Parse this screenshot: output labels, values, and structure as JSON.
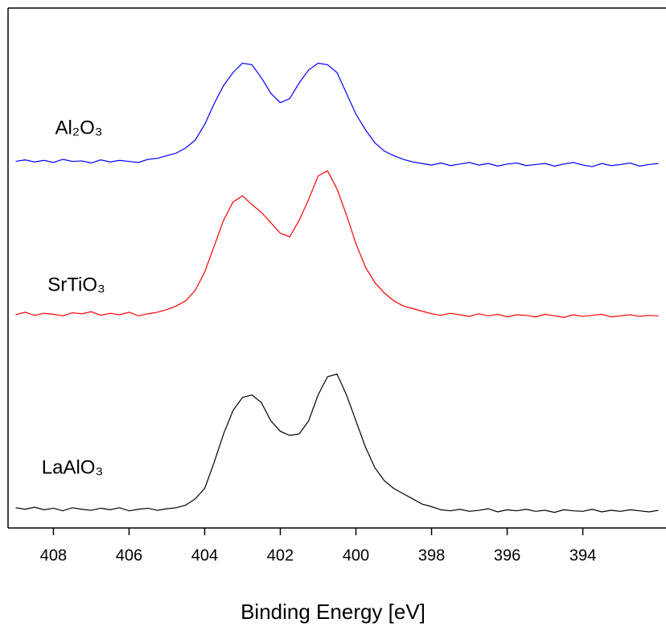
{
  "chart_data": {
    "type": "line",
    "x_label": "Binding Energy [eV]",
    "x": [
      409,
      408.75,
      408.5,
      408.25,
      408,
      407.75,
      407.5,
      407.25,
      407,
      406.75,
      406.5,
      406.25,
      406,
      405.75,
      405.5,
      405.25,
      405,
      404.75,
      404.5,
      404.25,
      404,
      403.75,
      403.5,
      403.25,
      403,
      402.75,
      402.5,
      402.25,
      402,
      401.75,
      401.5,
      401.25,
      401,
      400.75,
      400.5,
      400.25,
      400,
      399.75,
      399.5,
      399.25,
      399,
      398.75,
      398.5,
      398.25,
      398,
      397.75,
      397.5,
      397.25,
      397,
      396.75,
      396.5,
      396.25,
      396,
      395.75,
      395.5,
      395.25,
      395,
      394.75,
      394.5,
      394.25,
      394,
      393.75,
      393.5,
      393.25,
      393,
      392.75,
      392.5,
      392.25,
      392
    ],
    "series": [
      {
        "name": "Al₂O₃",
        "color": "#0000ff",
        "values": [
          70.5,
          70.8,
          70.4,
          70.7,
          70.3,
          70.9,
          70.5,
          70.6,
          70.2,
          70.8,
          70.4,
          70.7,
          70.5,
          70.3,
          70.9,
          71.1,
          71.6,
          72.1,
          73.1,
          74.6,
          77.6,
          81.6,
          85.1,
          87.6,
          89.4,
          89.1,
          86.6,
          83.6,
          81.8,
          82.6,
          85.6,
          88.1,
          89.4,
          89.1,
          87.6,
          83.6,
          79.6,
          76.6,
          74.1,
          72.5,
          71.6,
          70.9,
          70.4,
          70.1,
          69.8,
          70.2,
          69.7,
          70.0,
          70.3,
          69.8,
          70.1,
          69.6,
          70.0,
          70.2,
          69.7,
          69.9,
          70.1,
          69.6,
          70.0,
          70.3,
          69.8,
          69.5,
          70.1,
          69.7,
          69.9,
          70.2,
          69.6,
          69.9,
          70.1
        ]
      },
      {
        "name": "SrTiO₃",
        "color": "#ff0000",
        "values": [
          41.0,
          41.5,
          40.9,
          41.3,
          41.1,
          40.8,
          41.4,
          41.2,
          41.6,
          40.9,
          41.3,
          41.0,
          41.5,
          40.8,
          41.2,
          41.5,
          42.0,
          42.7,
          43.7,
          45.7,
          49.2,
          54.2,
          59.2,
          62.7,
          63.9,
          62.2,
          60.7,
          58.7,
          56.7,
          56.0,
          59.2,
          63.2,
          67.7,
          68.7,
          65.2,
          60.2,
          54.7,
          50.2,
          47.2,
          45.2,
          43.7,
          42.7,
          42.2,
          41.7,
          41.2,
          40.9,
          41.3,
          41.0,
          40.7,
          41.2,
          40.8,
          41.1,
          40.6,
          41.0,
          40.9,
          40.6,
          41.1,
          40.8,
          40.5,
          41.0,
          40.7,
          40.9,
          41.1,
          40.6,
          40.8,
          41.0,
          40.7,
          40.9,
          40.8
        ]
      },
      {
        "name": "LaAlO₃",
        "color": "#000000",
        "values": [
          3.9,
          3.6,
          4.0,
          3.5,
          3.8,
          3.3,
          3.9,
          3.6,
          3.4,
          3.8,
          3.5,
          3.9,
          3.3,
          3.6,
          3.8,
          3.4,
          3.7,
          3.9,
          4.4,
          5.6,
          7.6,
          12.6,
          18.1,
          22.6,
          25.1,
          25.6,
          24.1,
          20.6,
          18.6,
          17.8,
          18.1,
          20.6,
          25.6,
          29.1,
          29.6,
          25.6,
          20.6,
          15.6,
          11.6,
          9.1,
          7.6,
          6.6,
          5.6,
          4.6,
          4.1,
          3.5,
          3.3,
          3.6,
          3.2,
          3.4,
          3.7,
          3.1,
          3.5,
          3.3,
          3.6,
          3.2,
          3.4,
          3.0,
          3.5,
          3.3,
          3.2,
          3.6,
          3.1,
          3.4,
          3.2,
          3.5,
          3.3,
          3.1,
          3.4
        ]
      }
    ],
    "xlim": [
      409.2,
      391.8
    ],
    "xticks": [
      408,
      406,
      404,
      402,
      400,
      398,
      396,
      394
    ],
    "ylim": [
      0,
      100
    ],
    "grid": false
  }
}
